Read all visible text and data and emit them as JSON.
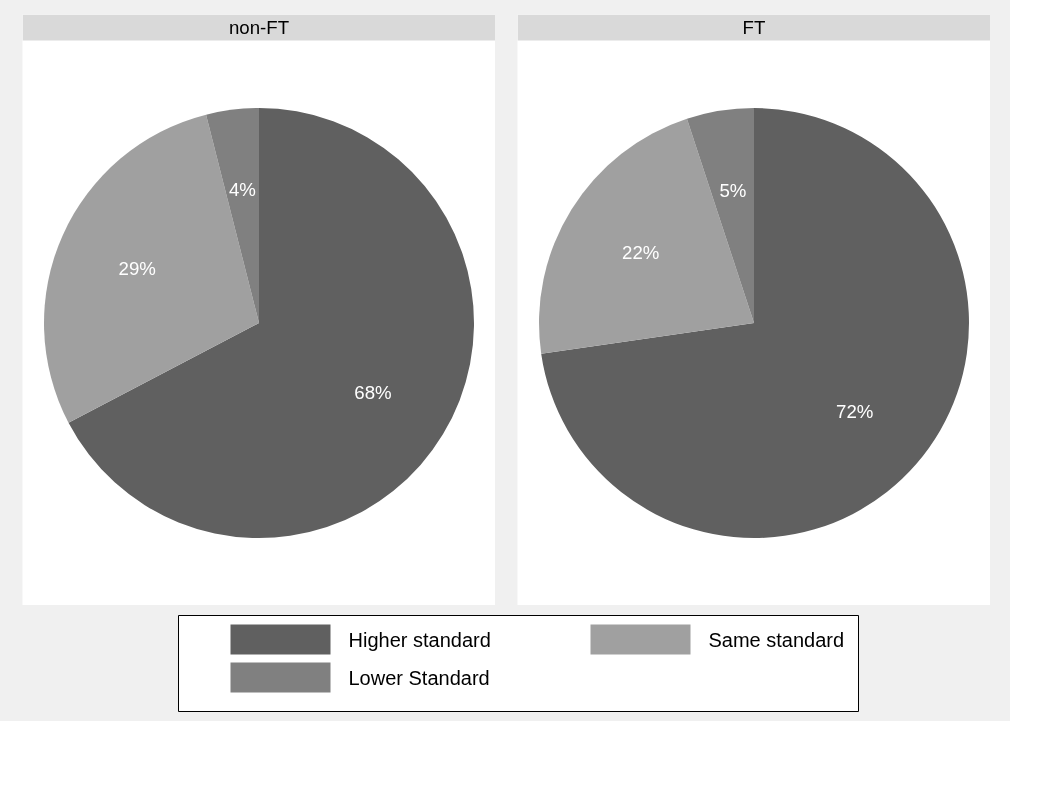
{
  "chart_data": [
    {
      "type": "pie",
      "title": "non-FT",
      "categories": [
        "Higher standard",
        "Same standard",
        "Lower Standard"
      ],
      "values": [
        68,
        29,
        4
      ],
      "value_labels": [
        "68%",
        "29%",
        "4%"
      ],
      "colors": [
        "#606060",
        "#a0a0a0",
        "#808080"
      ],
      "legend": "bottom"
    },
    {
      "type": "pie",
      "title": "FT",
      "categories": [
        null,
        null,
        null
      ],
      "values": [
        72,
        22,
        5
      ],
      "value_labels": [
        "72%",
        "22%",
        "5%"
      ],
      "colors": [
        "#606060",
        "#a0a0a0",
        "#808080"
      ]
    }
  ]
}
